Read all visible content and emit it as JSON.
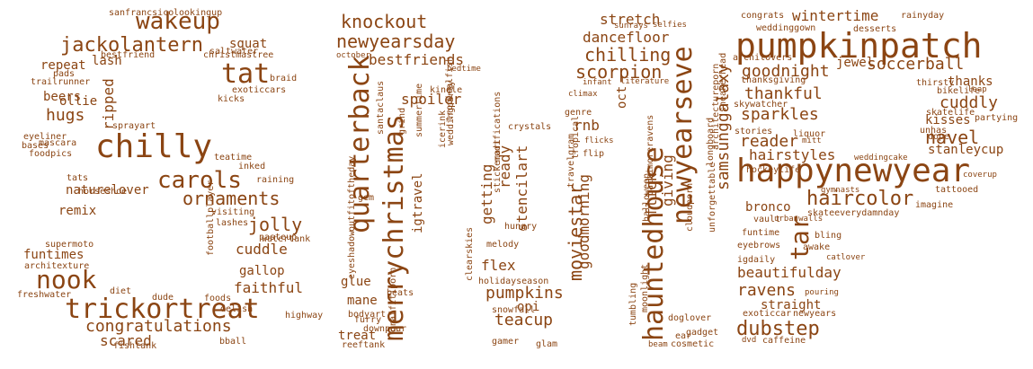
{
  "color": "#8B4513",
  "words": [
    "pumpkinpatch",
    "happynewyear",
    "chilly",
    "trickortreat",
    "hauntedhouse",
    "newyearseve",
    "merrychristmas",
    "quarterback",
    "wakeup",
    "nook",
    "tat",
    "tar",
    "carols",
    "jackolantern",
    "knockout",
    "newyearsday",
    "ornaments",
    "jolly",
    "haircolor",
    "dubstep",
    "congratulations",
    "samsunggalaxy",
    "moviestar",
    "chilling",
    "scorpion",
    "soccerball",
    "navel",
    "cuddly",
    "sparkles",
    "thankful",
    "pumpkins",
    "teacup",
    "reader",
    "goodnight",
    "ravens",
    "beautifulday",
    "cuddle",
    "faithful",
    "scared",
    "hugs",
    "stretch",
    "wintertime",
    "hairstyles",
    "dancefloor",
    "getting",
    "ready",
    "goodmorning",
    "stencilart",
    "flick",
    "giving",
    "bestfriends",
    "spoiler",
    "rnb",
    "flex",
    "opi",
    "glue",
    "mane",
    "treat",
    "bronco",
    "stanleycup",
    "straight",
    "kisses",
    "thanks",
    "ripped",
    "gallop",
    "funtimes",
    "squat",
    "ollie",
    "repeat",
    "lash",
    "beers",
    "remix",
    "naturelover",
    "igtravel",
    "jewel",
    "oct",
    "sanfrancsico",
    "lookingup",
    "saltwater",
    "bestfriend",
    "christmastree",
    "pads",
    "trailrunner",
    "braid",
    "exoticcars",
    "kicks",
    "sprayart",
    "eyeliner",
    "mascara",
    "bases",
    "foodpics",
    "teatime",
    "inked",
    "raining",
    "tats",
    "horseshoe",
    "visiting",
    "lashes",
    "watertank",
    "pasteup",
    "supermoto",
    "architexture",
    "freshwater",
    "diet",
    "dude",
    "foods",
    "delish",
    "highway",
    "bball",
    "fishtank",
    "footballplayer",
    "october",
    "santaclaus",
    "bedtime",
    "kindle",
    "icerink",
    "weddingparty",
    "tropicalfish",
    "summertime",
    "grind",
    "gem",
    "outfitoftheday",
    "eyeshadow",
    "stickerart",
    "modifications",
    "hungry",
    "clearskies",
    "melody",
    "holidayseason",
    "snowfall",
    "beats",
    "bodyart",
    "furry",
    "downpour",
    "graffitiporn",
    "reeftank",
    "gamer",
    "glam",
    "sunrays",
    "selfies",
    "infant",
    "literature",
    "climax",
    "genre",
    "crystals",
    "flicks",
    "flip",
    "tropical",
    "travelgram",
    "sneakerhead",
    "architectureporn",
    "longboard",
    "unforgettable",
    "cloudporn",
    "halloween",
    "baltimoreravens",
    "moonlight",
    "tumbling",
    "doglover",
    "ear",
    "beam",
    "cosmetic",
    "gadget",
    "congrats",
    "weddinggown",
    "desserts",
    "rainyday",
    "archilovers",
    "thanksgiving",
    "skywatcher",
    "liquor",
    "stories",
    "mitt",
    "bikelife",
    "leap",
    "skatelife",
    "partying",
    "unhas",
    "dope",
    "thirsty",
    "weddingcake",
    "coverup",
    "tattooed",
    "gymnasts",
    "imagine",
    "skateeverydamnday",
    "urbanwalls",
    "vault",
    "hockeylife",
    "funtime",
    "bling",
    "eyebrows",
    "awake",
    "igdaily",
    "catlover",
    "exoticcar",
    "newyears",
    "pouring",
    "caffeine",
    "dvd"
  ]
}
